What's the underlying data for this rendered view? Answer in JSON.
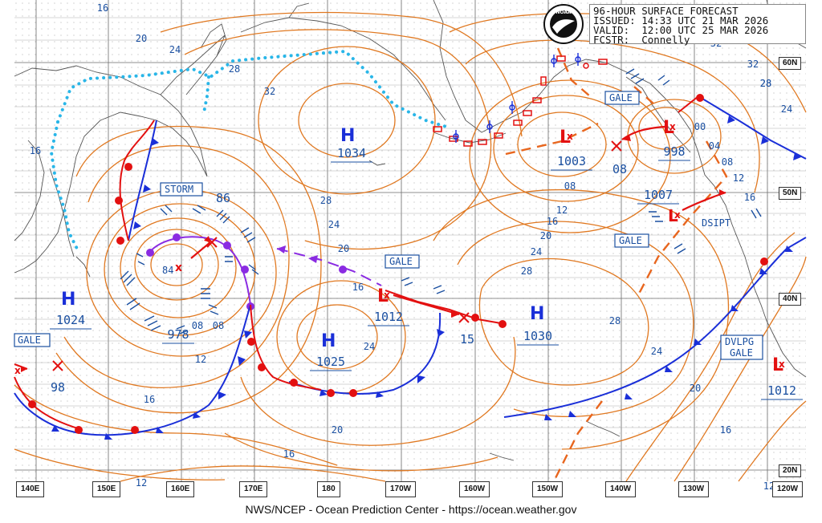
{
  "header": {
    "line1": "96-HOUR SURFACE FORECAST",
    "line2": "ISSUED: 14:33 UTC 21 MAR 2026",
    "line3": "VALID:  12:00 UTC 25 MAR 2026",
    "line4": "FCSTR:  Connelly"
  },
  "logo_text": "NOAA",
  "footer": "NWS/NCEP - Ocean Prediction Center - https://ocean.weather.gov",
  "longitude_labels": [
    "140E",
    "150E",
    "160E",
    "170E",
    "180",
    "170W",
    "160W",
    "150W",
    "140W",
    "130W",
    "120W"
  ],
  "latitude_labels": [
    "60N",
    "50N",
    "40N",
    "20N"
  ],
  "pressure_centers": [
    {
      "type": "H",
      "value": "1034"
    },
    {
      "type": "H",
      "value": "1024"
    },
    {
      "type": "H",
      "value": "1025"
    },
    {
      "type": "H",
      "value": "1030"
    },
    {
      "type": "L",
      "value": "978"
    },
    {
      "type": "L",
      "value": "1012"
    },
    {
      "type": "L",
      "value": "1003"
    },
    {
      "type": "L",
      "value": "998"
    },
    {
      "type": "L",
      "value": "1007"
    },
    {
      "type": "L",
      "value": "1012"
    }
  ],
  "center_labels": {
    "h1": "H",
    "h1v": "1034",
    "h2": "H",
    "h2v": "1024",
    "h3": "H",
    "h3v": "1025",
    "h4": "H",
    "h4v": "1030",
    "l_storm_val": "978",
    "l_gale_val": "1012",
    "l_gulf_val": "1003",
    "l_ak_val": "998",
    "l_ne_val": "1007",
    "l_se_val": "1012",
    "l_west_val": "98",
    "prev_15": "15",
    "prev_08": "08",
    "inner_84": "84"
  },
  "warnings": {
    "storm": "STORM",
    "gale1": "GALE",
    "gale2": "GALE",
    "gale3": "GALE",
    "gale4": "GALE",
    "dvlpg_gale_line1": "DVLPG",
    "dvlpg_gale_line2": "GALE",
    "dsipt": "DSIPT"
  },
  "isobar_labels": [
    "16",
    "20",
    "24",
    "28",
    "32",
    "28",
    "32",
    "86",
    "28",
    "24",
    "20",
    "16",
    "08",
    "12",
    "16",
    "20",
    "24",
    "28",
    "08",
    "12",
    "16",
    "20",
    "24",
    "28",
    "32",
    "28",
    "24",
    "00",
    "04",
    "08",
    "12",
    "16",
    "20",
    "24",
    "16",
    "12",
    "08",
    "12",
    "16",
    "20",
    "24",
    "28",
    "20",
    "16",
    "12"
  ],
  "colors": {
    "isobar": "#e07820",
    "cold_front": "#1a2fd8",
    "warm_front": "#e31010",
    "occluded_front": "#8a2be2",
    "ice_edge": "#29b6e8",
    "trough": "#e8661e",
    "high": "#1a2fd8",
    "low": "#e31010",
    "grid": "#666666",
    "label_blue": "#1a4fa0",
    "land": "#555555"
  }
}
